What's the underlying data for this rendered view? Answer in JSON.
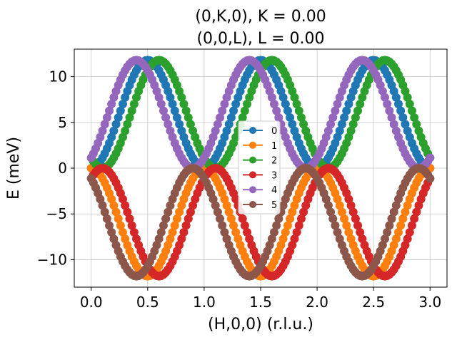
{
  "chart_data": {
    "type": "scatter",
    "title_lines": [
      "(0,K,0), K = 0.00",
      "(0,0,L), L = 0.00"
    ],
    "xlabel": "(H,0,0) (r.l.u.)",
    "ylabel": "E (meV)",
    "xlim": [
      -0.15,
      3.15
    ],
    "ylim": [
      -13,
      13
    ],
    "xticks": [
      0.0,
      0.5,
      1.0,
      1.5,
      2.0,
      2.5,
      3.0
    ],
    "xtick_labels": [
      "0.0",
      "0.5",
      "1.0",
      "1.5",
      "2.0",
      "2.5",
      "3.0"
    ],
    "yticks": [
      -10,
      -5,
      0,
      5,
      10
    ],
    "ytick_labels": [
      "−10",
      "−5",
      "0",
      "5",
      "10"
    ],
    "grid": true,
    "legend_position": "center",
    "x_range": [
      0,
      3
    ],
    "num_points": 151,
    "series": [
      {
        "name": "0",
        "color": "#1f77b4",
        "amplitude": 11.8,
        "sign": 1,
        "phase": 0.0
      },
      {
        "name": "1",
        "color": "#ff7f0e",
        "amplitude": 11.8,
        "sign": -1,
        "phase": 0.0
      },
      {
        "name": "2",
        "color": "#2ca02c",
        "amplitude": 11.8,
        "sign": 1,
        "phase": 0.1
      },
      {
        "name": "3",
        "color": "#d62728",
        "amplitude": 11.8,
        "sign": -1,
        "phase": 0.1
      },
      {
        "name": "4",
        "color": "#9467bd",
        "amplitude": 11.8,
        "sign": 1,
        "phase": -0.1
      },
      {
        "name": "5",
        "color": "#8c564b",
        "amplitude": 11.8,
        "sign": -1,
        "phase": -0.1
      }
    ]
  }
}
